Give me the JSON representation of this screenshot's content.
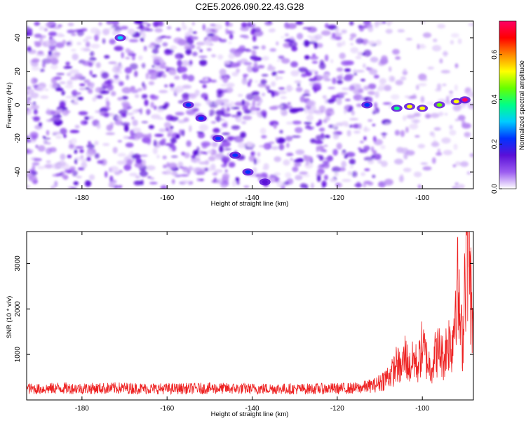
{
  "figure_title": "C2E5.2026.090.22.43.G28",
  "colors": {
    "snr_line": "#ee2222",
    "track": "#5a10d8",
    "background": "#ffffff"
  },
  "chart_data": [
    {
      "type": "heatmap",
      "name": "spectrogram",
      "title": "",
      "xlabel": "Height of straight line (km)",
      "ylabel": "Frequency (Hz)",
      "xlim": [
        -193,
        -88
      ],
      "ylim": [
        -50,
        50
      ],
      "x_ticks": [
        -180,
        -160,
        -140,
        -120,
        -100
      ],
      "x_tick_labels": [
        "-180",
        "-160",
        "-140",
        "-120",
        "-100"
      ],
      "y_ticks": [
        -40,
        -20,
        0,
        20,
        40
      ],
      "y_tick_labels": [
        "-40",
        "-20",
        "0",
        "20",
        "40"
      ],
      "colorbar": {
        "label": "Normalized spectral amplitude",
        "range": [
          0,
          0.75
        ],
        "ticks": [
          0.0,
          0.2,
          0.4,
          0.6
        ],
        "tick_labels": [
          "0.0",
          "0.2",
          "0.4",
          "0.6"
        ],
        "colormap": [
          "#ffffff",
          "#9b5cf0",
          "#5a10d8",
          "#0033ff",
          "#00ccff",
          "#00ff88",
          "#66ff00",
          "#ffff00",
          "#ff8800",
          "#ff0000",
          "#ff0066"
        ]
      },
      "signal_track": [
        {
          "x": -171,
          "y": 40,
          "value": 0.3
        },
        {
          "x": -155,
          "y": 0,
          "value": 0.25
        },
        {
          "x": -152,
          "y": -8,
          "value": 0.2
        },
        {
          "x": -148,
          "y": -20,
          "value": 0.2
        },
        {
          "x": -144,
          "y": -30,
          "value": 0.2
        },
        {
          "x": -141,
          "y": -40,
          "value": 0.2
        },
        {
          "x": -137,
          "y": -46,
          "value": 0.18
        },
        {
          "x": -113,
          "y": 0,
          "value": 0.25
        },
        {
          "x": -106,
          "y": -2,
          "value": 0.4
        },
        {
          "x": -103,
          "y": -1,
          "value": 0.5
        },
        {
          "x": -100,
          "y": -2,
          "value": 0.55
        },
        {
          "x": -96,
          "y": 0,
          "value": 0.45
        },
        {
          "x": -92,
          "y": 2,
          "value": 0.5
        },
        {
          "x": -90,
          "y": 3,
          "value": 0.72
        }
      ]
    },
    {
      "type": "line",
      "name": "snr",
      "title": "",
      "xlabel": "Height of straight line (km)",
      "ylabel": "SNR (10 * v/v)",
      "xlim": [
        -193,
        -88
      ],
      "ylim": [
        0,
        3700
      ],
      "x_ticks": [
        -180,
        -160,
        -140,
        -120,
        -100
      ],
      "x_tick_labels": [
        "-180",
        "-160",
        "-140",
        "-120",
        "-100"
      ],
      "y_ticks": [
        1000,
        2000,
        3000
      ],
      "y_tick_labels": [
        "1000",
        "2000",
        "3000"
      ],
      "series": [
        {
          "name": "SNR",
          "x": [
            -193,
            -190,
            -185,
            -180,
            -175,
            -170,
            -165,
            -160,
            -155,
            -150,
            -145,
            -140,
            -135,
            -130,
            -125,
            -120,
            -115,
            -111,
            -109,
            -107,
            -106,
            -105,
            -104,
            -103,
            -102,
            -101,
            -100,
            -99,
            -98,
            -97,
            -96,
            -95,
            -94,
            -93,
            -92.5,
            -92,
            -91.5,
            -91,
            -90.5,
            -90,
            -89.5,
            -89,
            -88.5,
            -88
          ],
          "values": [
            250,
            240,
            260,
            250,
            255,
            260,
            250,
            245,
            250,
            255,
            250,
            245,
            250,
            240,
            245,
            250,
            260,
            330,
            450,
            600,
            800,
            650,
            1000,
            700,
            900,
            750,
            1200,
            900,
            700,
            1000,
            1100,
            900,
            1300,
            1200,
            1800,
            2700,
            2200,
            1500,
            1300,
            2900,
            3700,
            3500,
            2000,
            1200
          ]
        }
      ]
    }
  ]
}
